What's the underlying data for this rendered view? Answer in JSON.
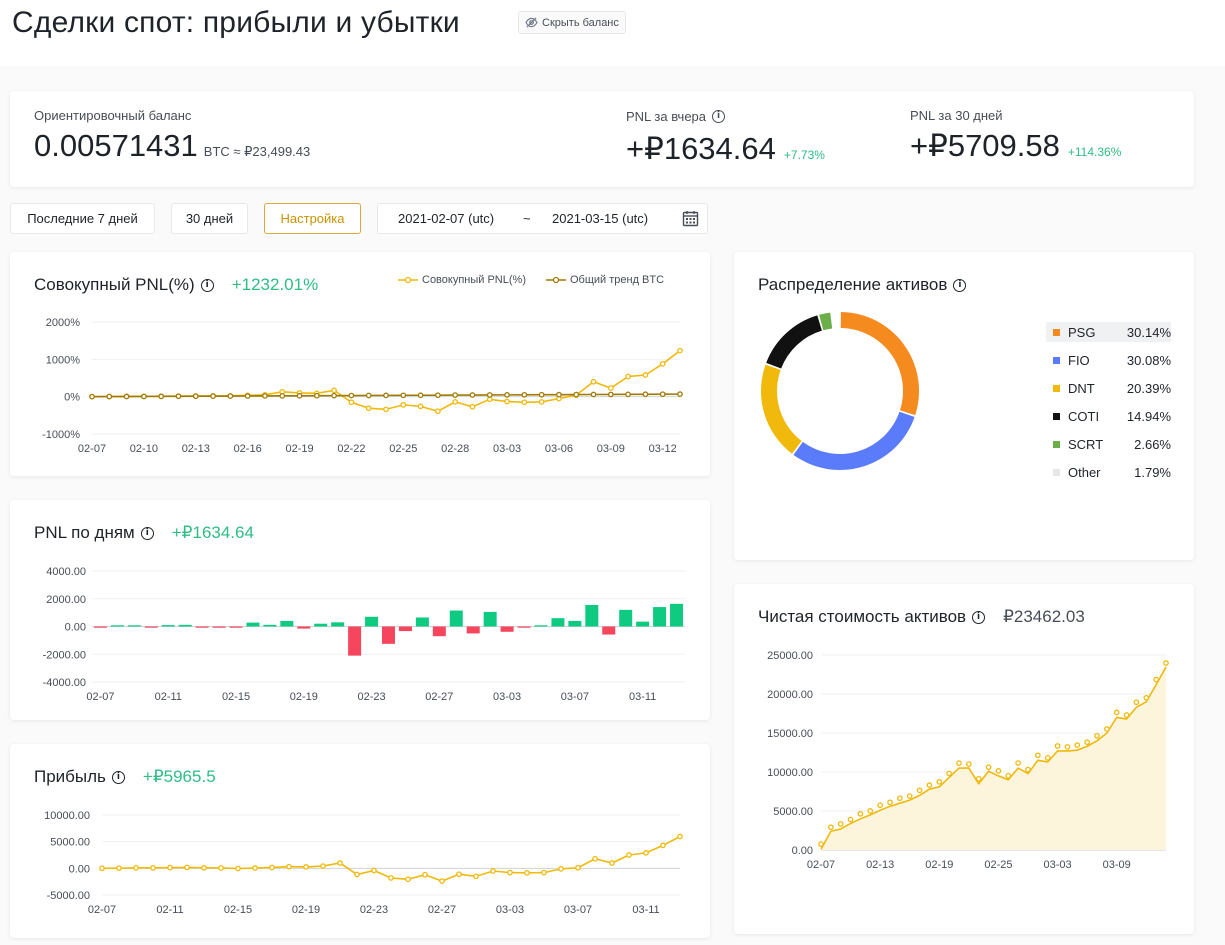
{
  "page": {
    "title": "Сделки спот: прибыли и убытки",
    "hide_balance_label": "Скрыть баланс"
  },
  "summary": {
    "balance_label": "Ориентировочный баланс",
    "balance_value": "0.00571431",
    "balance_unit": "BTC ≈ ₽23,499.43",
    "pnl_yesterday_label": "PNL за вчера",
    "pnl_yesterday_value": "+₽1634.64",
    "pnl_yesterday_pct": "+7.73%",
    "pnl_30d_label": "PNL за 30 дней",
    "pnl_30d_value": "+₽5709.58",
    "pnl_30d_pct": "+114.36%"
  },
  "filters": {
    "last7": "Последние 7 дней",
    "days30": "30 дней",
    "custom": "Настройка",
    "date_from": "2021-02-07 (utc)",
    "date_sep": "~",
    "date_to": "2021-03-15 (utc)"
  },
  "colors": {
    "accent": "#f0b90b",
    "btc_trend": "#a07a06",
    "positive": "#0ecb81",
    "negative": "#f6465d",
    "text_green": "#2ebd85"
  },
  "panels": {
    "cumulative": {
      "title": "Совокупный PNL(%)",
      "value": "+1232.01%"
    },
    "daily": {
      "title": "PNL по дням",
      "value": "+₽1634.64"
    },
    "profit": {
      "title": "Прибыль",
      "value": "+₽5965.5"
    },
    "allocation": {
      "title": "Распределение активов"
    },
    "networth": {
      "title": "Чистая стоимость активов",
      "value": "₽23462.03"
    }
  },
  "chart_data": [
    {
      "id": "cumulative",
      "type": "line",
      "series": [
        {
          "name": "Совокупный PNL(%)",
          "color": "#f0b90b",
          "values": [
            0,
            5,
            10,
            8,
            12,
            15,
            18,
            20,
            22,
            35,
            50,
            130,
            100,
            90,
            170,
            -150,
            -310,
            -340,
            -220,
            -260,
            -390,
            -140,
            -270,
            -70,
            -130,
            -150,
            -140,
            -50,
            40,
            400,
            230,
            540,
            580,
            880,
            1232
          ]
        },
        {
          "name": "Общий тренд BTC",
          "color": "#a07a06",
          "values": [
            0,
            2,
            4,
            6,
            8,
            10,
            12,
            14,
            16,
            18,
            20,
            22,
            24,
            26,
            28,
            30,
            32,
            34,
            36,
            38,
            40,
            42,
            44,
            46,
            48,
            50,
            52,
            54,
            56,
            58,
            60,
            62,
            64,
            66,
            68
          ]
        }
      ],
      "x_ticks": [
        "02-07",
        "02-10",
        "02-13",
        "02-16",
        "02-19",
        "02-22",
        "02-25",
        "02-28",
        "03-03",
        "03-06",
        "03-09",
        "03-12"
      ],
      "y_ticks": [
        "2000%",
        "1000%",
        "0%",
        "-1000%"
      ],
      "ylim": [
        -1000,
        2000
      ]
    },
    {
      "id": "daily",
      "type": "bar",
      "values": [
        -60,
        60,
        80,
        -60,
        100,
        120,
        -70,
        -50,
        -60,
        280,
        120,
        400,
        -150,
        200,
        300,
        -2100,
        700,
        -1250,
        -330,
        650,
        -700,
        1150,
        -500,
        1050,
        -380,
        -50,
        50,
        600,
        400,
        1550,
        -580,
        1200,
        350,
        1400,
        1634.64
      ],
      "x_ticks": [
        "02-07",
        "02-11",
        "02-15",
        "02-19",
        "02-23",
        "02-27",
        "03-03",
        "03-07",
        "03-11"
      ],
      "y_ticks": [
        "4000.00",
        "2000.00",
        "0.00",
        "-2000.00",
        "-4000.00"
      ],
      "ylim": [
        -4000,
        4000
      ]
    },
    {
      "id": "profit",
      "type": "line",
      "values": [
        0,
        30,
        90,
        90,
        130,
        170,
        110,
        70,
        -30,
        60,
        160,
        310,
        270,
        430,
        1000,
        -1150,
        -400,
        -1800,
        -2050,
        -1200,
        -2400,
        -1100,
        -1500,
        -500,
        -800,
        -850,
        -800,
        -100,
        100,
        1800,
        1000,
        2500,
        2900,
        4300,
        5965.5
      ],
      "x_ticks": [
        "02-07",
        "02-11",
        "02-15",
        "02-19",
        "02-23",
        "02-27",
        "03-03",
        "03-07",
        "03-11"
      ],
      "y_ticks": [
        "10000.00",
        "5000.00",
        "0.00",
        "-5000.00"
      ],
      "ylim": [
        -5000,
        10000
      ]
    },
    {
      "id": "allocation",
      "type": "pie",
      "slices": [
        {
          "name": "PSG",
          "pct": "30.14%",
          "value": 30.14,
          "color": "#f58a1f"
        },
        {
          "name": "FIO",
          "pct": "30.08%",
          "value": 30.08,
          "color": "#5b7cfa"
        },
        {
          "name": "DNT",
          "pct": "20.39%",
          "value": 20.39,
          "color": "#f0b90b"
        },
        {
          "name": "COTI",
          "pct": "14.94%",
          "value": 14.94,
          "color": "#111111"
        },
        {
          "name": "SCRT",
          "pct": "2.66%",
          "value": 2.66,
          "color": "#6cae4a"
        },
        {
          "name": "Other",
          "pct": "1.79%",
          "value": 1.79,
          "color": "#e5e7ea"
        }
      ]
    },
    {
      "id": "networth",
      "type": "area",
      "values": [
        100,
        2400,
        2700,
        3400,
        4000,
        4500,
        5100,
        5600,
        6000,
        6400,
        7000,
        7800,
        8100,
        9300,
        10500,
        10500,
        8500,
        10100,
        9500,
        9000,
        10500,
        9800,
        11500,
        11300,
        12700,
        12700,
        12800,
        13300,
        14000,
        15000,
        17000,
        16800,
        18300,
        19000,
        21200,
        23462
      ],
      "x_ticks": [
        "02-07",
        "02-13",
        "02-19",
        "02-25",
        "03-03",
        "03-09"
      ],
      "y_ticks": [
        "25000.00",
        "20000.00",
        "15000.00",
        "10000.00",
        "5000.00",
        "0.00"
      ],
      "ylim": [
        0,
        25000
      ]
    }
  ]
}
